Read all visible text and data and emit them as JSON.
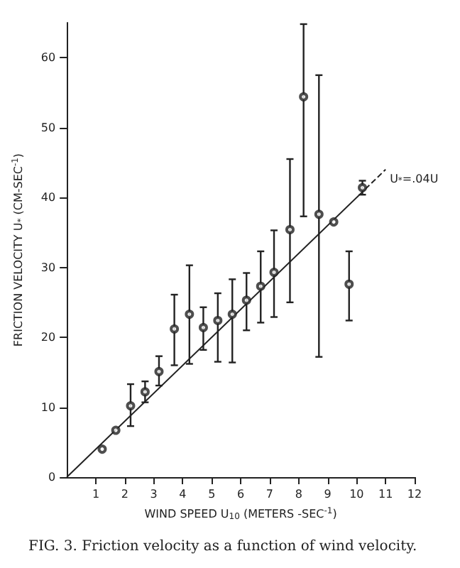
{
  "chart_data": {
    "type": "scatter",
    "xlabel": "WIND SPEED U$_{10}$ (METERS -SEC$^{-1}$)",
    "ylabel": "FRICTION VELOCITY U$_{*}$ (CM-SEC$^{-1}$)",
    "x": [
      1.22,
      1.69,
      2.2,
      2.7,
      3.18,
      3.71,
      4.23,
      4.71,
      5.21,
      5.71,
      6.2,
      6.69,
      7.15,
      7.7,
      8.17,
      8.7,
      9.21,
      9.74,
      10.2
    ],
    "series": [
      {
        "color": "#222222",
        "marker": "circle",
        "values": [
          4,
          6.7,
          10.2,
          12.2,
          15.1,
          21.2,
          23.3,
          21.4,
          22.4,
          23.3,
          25.3,
          27.3,
          29.3,
          35.4,
          54.4,
          37.6,
          36.5,
          27.6,
          41.4
        ],
        "errors": [
          null,
          null,
          [
            7.3,
            13.3
          ],
          [
            10.7,
            13.7
          ],
          [
            13.1,
            17.3
          ],
          [
            16,
            26.1
          ],
          [
            16.2,
            30.3
          ],
          [
            18.2,
            24.3
          ],
          [
            16.5,
            26.3
          ],
          [
            16.4,
            28.3
          ],
          [
            21,
            29.2
          ],
          [
            22.1,
            32.3
          ],
          [
            22.9,
            35.3
          ],
          [
            25,
            45.5
          ],
          [
            37.3,
            64.8
          ],
          [
            17.2,
            57.5
          ],
          null,
          [
            22.4,
            32.3
          ],
          [
            40.4,
            42.4
          ]
        ]
      },
      {
        "type": "line",
        "color": "#222222",
        "x": [
          0,
          10.3
        ],
        "values": [
          0,
          41.2
        ],
        "line_style": "solid"
      },
      {
        "type": "line",
        "color": "#222222",
        "x": [
          10.3,
          11
        ],
        "values": [
          41.2,
          44
        ],
        "line_style": "dashed"
      }
    ],
    "xlim": [
      0,
      12
    ],
    "xticks": [
      1,
      2,
      3,
      4,
      5,
      6,
      7,
      8,
      9,
      10,
      11,
      12
    ],
    "ylim": [
      0,
      65
    ],
    "yticks": [
      0,
      10,
      20,
      30,
      40,
      50,
      60
    ],
    "annotations": [
      {
        "text": "U$_{*}$=.04U",
        "x": 11,
        "y": 44
      },
      "FIG. 3. Friction velocity as a function of wind velocity."
    ],
    "grid": false
  }
}
